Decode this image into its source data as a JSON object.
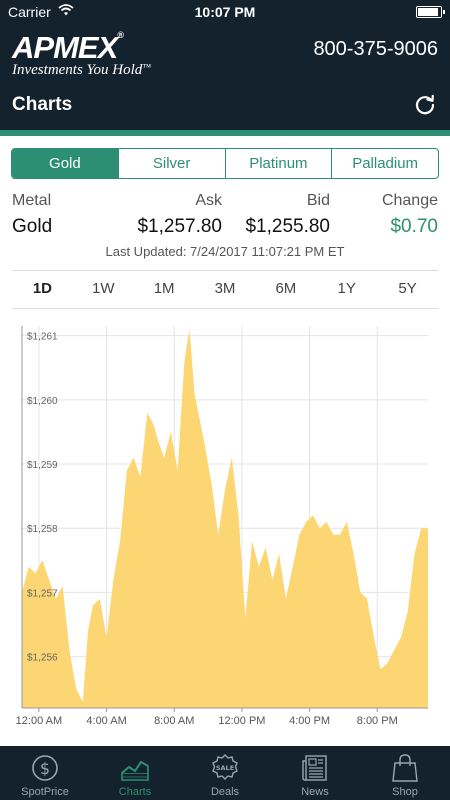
{
  "status": {
    "carrier": "Carrier",
    "time": "10:07 PM"
  },
  "header": {
    "brand": "APMEX",
    "tagline": "Investments You Hold",
    "trademark": "™",
    "registered": "®",
    "phone": "800-375-9006",
    "title": "Charts"
  },
  "metal_tabs": [
    {
      "label": "Gold",
      "active": true
    },
    {
      "label": "Silver",
      "active": false
    },
    {
      "label": "Platinum",
      "active": false
    },
    {
      "label": "Palladium",
      "active": false
    }
  ],
  "price": {
    "headers": {
      "metal": "Metal",
      "ask": "Ask",
      "bid": "Bid",
      "change": "Change"
    },
    "metal": "Gold",
    "ask": "$1,257.80",
    "bid": "$1,255.80",
    "change": "$0.70",
    "last_updated": "Last Updated: 7/24/2017 11:07:21 PM ET"
  },
  "range_tabs": [
    {
      "label": "1D",
      "active": true
    },
    {
      "label": "1W",
      "active": false
    },
    {
      "label": "1M",
      "active": false
    },
    {
      "label": "3M",
      "active": false
    },
    {
      "label": "6M",
      "active": false
    },
    {
      "label": "1Y",
      "active": false
    },
    {
      "label": "5Y",
      "active": false
    }
  ],
  "chart_data": {
    "type": "area",
    "color": "#fcd672",
    "ylim": [
      1255.2,
      1261.15
    ],
    "xlim": [
      0,
      24
    ],
    "grid": true,
    "yticks": [
      {
        "value": 1261,
        "label": "$1,261"
      },
      {
        "value": 1260,
        "label": "$1,260"
      },
      {
        "value": 1259,
        "label": "$1,259"
      },
      {
        "value": 1258,
        "label": "$1,258"
      },
      {
        "value": 1257,
        "label": "$1,257"
      },
      {
        "value": 1256,
        "label": "$1,256"
      }
    ],
    "xticks": [
      {
        "value": 1,
        "label": "12:00 AM"
      },
      {
        "value": 5,
        "label": "4:00 AM"
      },
      {
        "value": 9,
        "label": "8:00 AM"
      },
      {
        "value": 13,
        "label": "12:00 PM"
      },
      {
        "value": 17,
        "label": "4:00 PM"
      },
      {
        "value": 21,
        "label": "8:00 PM"
      }
    ],
    "x": [
      0,
      0.4,
      0.8,
      1.2,
      1.6,
      2.0,
      2.4,
      2.8,
      3.2,
      3.6,
      3.9,
      4.2,
      4.6,
      5.0,
      5.4,
      5.8,
      6.2,
      6.6,
      7.0,
      7.4,
      7.8,
      8.0,
      8.4,
      8.8,
      9.2,
      9.6,
      9.9,
      10.2,
      10.5,
      10.8,
      11.2,
      11.6,
      12.0,
      12.4,
      12.8,
      13.2,
      13.6,
      14.0,
      14.4,
      14.8,
      15.2,
      15.6,
      16.0,
      16.4,
      16.8,
      17.2,
      17.6,
      18.0,
      18.4,
      18.8,
      19.2,
      19.6,
      20.0,
      20.4,
      20.8,
      21.2,
      21.6,
      22.0,
      22.4,
      22.8,
      23.2,
      23.6,
      24.0
    ],
    "y": [
      1257.0,
      1257.4,
      1257.3,
      1257.5,
      1257.2,
      1256.9,
      1257.1,
      1256.1,
      1255.5,
      1255.3,
      1256.4,
      1256.8,
      1256.9,
      1256.3,
      1257.2,
      1257.8,
      1258.9,
      1259.1,
      1258.8,
      1259.8,
      1259.6,
      1259.4,
      1259.1,
      1259.5,
      1258.9,
      1260.6,
      1261.1,
      1260.1,
      1259.7,
      1259.3,
      1258.7,
      1257.9,
      1258.6,
      1259.1,
      1258.2,
      1256.6,
      1257.8,
      1257.4,
      1257.7,
      1257.2,
      1257.6,
      1256.9,
      1257.4,
      1257.9,
      1258.1,
      1258.2,
      1258.0,
      1258.1,
      1257.9,
      1257.9,
      1258.1,
      1257.6,
      1257.0,
      1256.9,
      1256.3,
      1255.8,
      1255.9,
      1256.1,
      1256.3,
      1256.7,
      1257.6,
      1258.0,
      1258.0
    ]
  },
  "tabbar": [
    {
      "label": "SpotPrice",
      "icon": "dollar-coin-icon",
      "active": false
    },
    {
      "label": "Charts",
      "icon": "line-chart-icon",
      "active": true
    },
    {
      "label": "Deals",
      "icon": "sale-badge-icon",
      "active": false
    },
    {
      "label": "News",
      "icon": "newspaper-icon",
      "active": false
    },
    {
      "label": "Shop",
      "icon": "shopping-bag-icon",
      "active": false
    }
  ]
}
